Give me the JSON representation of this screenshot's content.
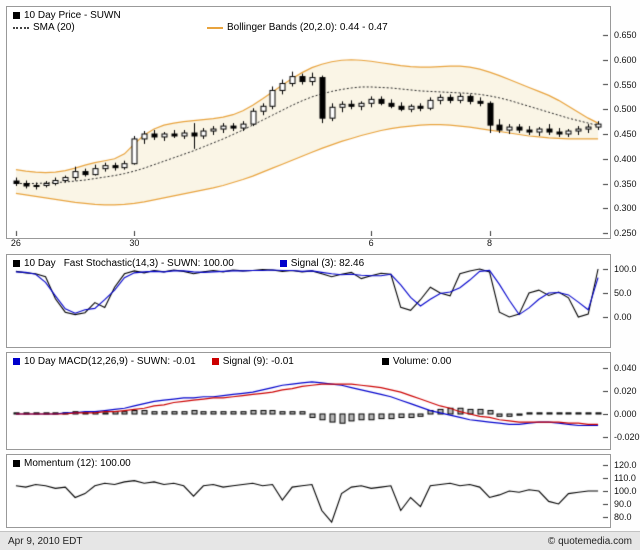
{
  "footer": {
    "date": "Apr 9, 2010 EDT",
    "credit": "© quotemedia.com"
  },
  "colors": {
    "bollinger": "#e8a33d",
    "band_fill": "rgba(244,232,200,0.45)",
    "sma": "#222222",
    "candle_outline": "#000000",
    "candle_up_fill": "#ffffff",
    "candle_down_fill": "#000000",
    "stoch_k": "#000000",
    "stoch_signal": "#0000cc",
    "macd_line": "#0000cc",
    "macd_signal": "#cc0000",
    "volume_bar_fill": "#b8b8b8",
    "volume_bar_outline": "#000000",
    "momentum_line": "#000000",
    "axis_tick": "#333333",
    "panel_border": "#999999",
    "footer_bg": "#e6e6e6"
  },
  "legends": {
    "price": {
      "title": {
        "color": "#000000",
        "label": "10 Day Price - SUWN"
      },
      "sma": {
        "color": "#000000",
        "label": "SMA (20)"
      },
      "bollinger": {
        "color": "#e8a33d",
        "label": "Bollinger Bands (20,2.0): 0.44 - 0.47"
      }
    },
    "stochastic": {
      "period": {
        "color": "#000000",
        "label": "10 Day"
      },
      "k": {
        "label": "Fast Stochastic(14,3) - SUWN: 100.00"
      },
      "signal": {
        "color": "#0000cc",
        "label": "Signal (3): 82.46"
      }
    },
    "macd": {
      "macd": {
        "color": "#0000cc",
        "label": "10 Day MACD(12,26,9) - SUWN: -0.01"
      },
      "signal": {
        "color": "#cc0000",
        "label": "Signal (9): -0.01"
      },
      "volume": {
        "color": "#000000",
        "label": "Volume: 0.00"
      }
    },
    "momentum": {
      "momentum": {
        "color": "#000000",
        "label": "Momentum (12): 100.00"
      }
    }
  },
  "chart_data": [
    {
      "type": "candlestick",
      "title": "10 Day Price - SUWN",
      "legend": [
        "10 Day Price - SUWN",
        "SMA (20)",
        "Bollinger Bands (20,2.0): 0.44 - 0.47"
      ],
      "ylim": [
        0.25,
        0.65
      ],
      "y_ticks": [
        "0.650",
        "0.600",
        "0.550",
        "0.500",
        "0.450",
        "0.400",
        "0.350",
        "0.300",
        "0.250"
      ],
      "x_tick_labels": [
        "26",
        "30",
        "6",
        "8"
      ],
      "x_tick_index": [
        0,
        12,
        36,
        48
      ],
      "candles_ohlc": [
        [
          0.355,
          0.362,
          0.345,
          0.35
        ],
        [
          0.35,
          0.356,
          0.34,
          0.345
        ],
        [
          0.345,
          0.352,
          0.338,
          0.346
        ],
        [
          0.346,
          0.355,
          0.342,
          0.35
        ],
        [
          0.35,
          0.362,
          0.346,
          0.356
        ],
        [
          0.356,
          0.366,
          0.352,
          0.362
        ],
        [
          0.362,
          0.384,
          0.356,
          0.374
        ],
        [
          0.374,
          0.38,
          0.364,
          0.368
        ],
        [
          0.368,
          0.388,
          0.366,
          0.38
        ],
        [
          0.38,
          0.392,
          0.374,
          0.386
        ],
        [
          0.386,
          0.392,
          0.376,
          0.382
        ],
        [
          0.382,
          0.396,
          0.378,
          0.39
        ],
        [
          0.39,
          0.446,
          0.388,
          0.44
        ],
        [
          0.44,
          0.456,
          0.43,
          0.45
        ],
        [
          0.45,
          0.458,
          0.438,
          0.444
        ],
        [
          0.444,
          0.454,
          0.436,
          0.45
        ],
        [
          0.45,
          0.458,
          0.442,
          0.446
        ],
        [
          0.446,
          0.458,
          0.44,
          0.452
        ],
        [
          0.452,
          0.472,
          0.42,
          0.446
        ],
        [
          0.446,
          0.462,
          0.44,
          0.456
        ],
        [
          0.456,
          0.466,
          0.448,
          0.46
        ],
        [
          0.46,
          0.472,
          0.452,
          0.466
        ],
        [
          0.466,
          0.472,
          0.456,
          0.462
        ],
        [
          0.462,
          0.476,
          0.456,
          0.47
        ],
        [
          0.47,
          0.502,
          0.466,
          0.496
        ],
        [
          0.496,
          0.512,
          0.488,
          0.506
        ],
        [
          0.506,
          0.546,
          0.5,
          0.538
        ],
        [
          0.538,
          0.56,
          0.53,
          0.552
        ],
        [
          0.552,
          0.576,
          0.546,
          0.566
        ],
        [
          0.566,
          0.572,
          0.55,
          0.556
        ],
        [
          0.556,
          0.574,
          0.548,
          0.564
        ],
        [
          0.564,
          0.568,
          0.472,
          0.482
        ],
        [
          0.482,
          0.512,
          0.476,
          0.504
        ],
        [
          0.504,
          0.516,
          0.494,
          0.51
        ],
        [
          0.51,
          0.518,
          0.5,
          0.506
        ],
        [
          0.506,
          0.516,
          0.498,
          0.512
        ],
        [
          0.512,
          0.526,
          0.504,
          0.52
        ],
        [
          0.52,
          0.526,
          0.508,
          0.512
        ],
        [
          0.512,
          0.52,
          0.502,
          0.506
        ],
        [
          0.506,
          0.514,
          0.496,
          0.5
        ],
        [
          0.5,
          0.51,
          0.494,
          0.506
        ],
        [
          0.506,
          0.512,
          0.496,
          0.502
        ],
        [
          0.502,
          0.524,
          0.498,
          0.518
        ],
        [
          0.518,
          0.53,
          0.51,
          0.524
        ],
        [
          0.524,
          0.53,
          0.512,
          0.518
        ],
        [
          0.518,
          0.532,
          0.512,
          0.526
        ],
        [
          0.526,
          0.53,
          0.51,
          0.516
        ],
        [
          0.516,
          0.524,
          0.506,
          0.512
        ],
        [
          0.512,
          0.516,
          0.452,
          0.468
        ],
        [
          0.468,
          0.48,
          0.452,
          0.458
        ],
        [
          0.458,
          0.47,
          0.45,
          0.464
        ],
        [
          0.464,
          0.47,
          0.452,
          0.458
        ],
        [
          0.458,
          0.466,
          0.448,
          0.454
        ],
        [
          0.454,
          0.464,
          0.446,
          0.46
        ],
        [
          0.46,
          0.47,
          0.448,
          0.454
        ],
        [
          0.454,
          0.462,
          0.444,
          0.45
        ],
        [
          0.45,
          0.46,
          0.444,
          0.456
        ],
        [
          0.456,
          0.466,
          0.448,
          0.46
        ],
        [
          0.46,
          0.47,
          0.452,
          0.464
        ],
        [
          0.464,
          0.476,
          0.458,
          0.47
        ]
      ],
      "sma20": [
        0.35,
        0.35,
        0.35,
        0.351,
        0.352,
        0.353,
        0.355,
        0.357,
        0.36,
        0.363,
        0.366,
        0.37,
        0.375,
        0.381,
        0.388,
        0.395,
        0.402,
        0.409,
        0.416,
        0.424,
        0.432,
        0.44,
        0.449,
        0.458,
        0.468,
        0.478,
        0.488,
        0.498,
        0.508,
        0.517,
        0.525,
        0.531,
        0.536,
        0.54,
        0.543,
        0.545,
        0.545,
        0.544,
        0.543,
        0.541,
        0.539,
        0.537,
        0.536,
        0.535,
        0.534,
        0.533,
        0.532,
        0.53,
        0.527,
        0.523,
        0.518,
        0.512,
        0.506,
        0.5,
        0.494,
        0.488,
        0.482,
        0.477,
        0.472,
        0.467
      ],
      "bb_upper": [
        0.378,
        0.375,
        0.373,
        0.372,
        0.373,
        0.376,
        0.381,
        0.387,
        0.392,
        0.396,
        0.4,
        0.41,
        0.43,
        0.448,
        0.46,
        0.468,
        0.472,
        0.475,
        0.477,
        0.479,
        0.481,
        0.484,
        0.489,
        0.497,
        0.508,
        0.521,
        0.535,
        0.549,
        0.562,
        0.574,
        0.584,
        0.591,
        0.596,
        0.599,
        0.6,
        0.599,
        0.597,
        0.594,
        0.591,
        0.588,
        0.586,
        0.585,
        0.585,
        0.586,
        0.587,
        0.587,
        0.585,
        0.581,
        0.575,
        0.568,
        0.56,
        0.552,
        0.544,
        0.536,
        0.528,
        0.518,
        0.506,
        0.494,
        0.482,
        0.472
      ],
      "bb_lower": [
        0.33,
        0.327,
        0.324,
        0.321,
        0.318,
        0.315,
        0.312,
        0.31,
        0.308,
        0.307,
        0.307,
        0.308,
        0.31,
        0.313,
        0.317,
        0.321,
        0.325,
        0.329,
        0.333,
        0.337,
        0.341,
        0.346,
        0.352,
        0.358,
        0.365,
        0.373,
        0.381,
        0.389,
        0.397,
        0.405,
        0.413,
        0.421,
        0.428,
        0.435,
        0.441,
        0.447,
        0.452,
        0.457,
        0.461,
        0.464,
        0.466,
        0.468,
        0.469,
        0.469,
        0.468,
        0.466,
        0.464,
        0.461,
        0.458,
        0.455,
        0.452,
        0.449,
        0.446,
        0.444,
        0.442,
        0.441,
        0.44,
        0.44,
        0.44,
        0.44
      ]
    },
    {
      "type": "line",
      "title": "10 Day Fast Stochastic(14,3) - SUWN",
      "ylim": [
        0,
        100
      ],
      "y_ticks": [
        "100.0",
        "50.0",
        "0.00"
      ],
      "series": [
        {
          "name": "Fast Stochastic(14,3) - SUWN",
          "current": 100.0,
          "color": "#000000",
          "values": [
            95,
            92,
            90,
            84,
            38,
            10,
            5,
            9,
            30,
            20,
            62,
            90,
            96,
            92,
            97,
            94,
            98,
            95,
            90,
            94,
            97,
            94,
            98,
            96,
            97,
            99,
            98,
            95,
            97,
            94,
            96,
            90,
            84,
            89,
            93,
            80,
            86,
            91,
            89,
            20,
            14,
            36,
            62,
            50,
            44,
            90,
            96,
            100,
            94,
            10,
            0,
            6,
            50,
            56,
            45,
            52,
            40,
            0,
            6,
            100
          ]
        },
        {
          "name": "Signal (3)",
          "current": 82.46,
          "color": "#0000cc",
          "values": [
            94,
            93,
            89,
            72,
            44,
            17,
            8,
            15,
            18,
            36,
            56,
            82,
            92,
            94,
            95,
            94,
            96,
            96,
            94,
            93,
            94,
            95,
            96,
            96,
            97,
            97,
            98,
            97,
            97,
            95,
            96,
            93,
            90,
            88,
            89,
            87,
            86,
            86,
            89,
            67,
            41,
            23,
            37,
            49,
            52,
            61,
            77,
            95,
            97,
            68,
            35,
            5,
            19,
            37,
            50,
            51,
            46,
            31,
            15,
            82
          ]
        }
      ]
    },
    {
      "type": "line+bar",
      "title": "10 Day MACD(12,26,9) - SUWN",
      "ylim": [
        -0.02,
        0.04
      ],
      "y_ticks": [
        "0.040",
        "0.020",
        "0.000",
        "-0.020"
      ],
      "series": [
        {
          "name": "MACD(12,26,9) - SUWN",
          "current": -0.01,
          "color": "#0000cc",
          "values": [
            0.0,
            0.0,
            0.0,
            0.0,
            0.0,
            0.001,
            0.001,
            0.002,
            0.002,
            0.003,
            0.004,
            0.005,
            0.007,
            0.009,
            0.011,
            0.012,
            0.013,
            0.014,
            0.014,
            0.015,
            0.015,
            0.016,
            0.017,
            0.018,
            0.019,
            0.021,
            0.023,
            0.025,
            0.026,
            0.027,
            0.028,
            0.027,
            0.026,
            0.025,
            0.023,
            0.021,
            0.019,
            0.017,
            0.015,
            0.012,
            0.009,
            0.006,
            0.003,
            0.001,
            -0.001,
            -0.003,
            -0.005,
            -0.006,
            -0.007,
            -0.008,
            -0.009,
            -0.009,
            -0.008,
            -0.007,
            -0.007,
            -0.008,
            -0.009,
            -0.01,
            -0.01,
            -0.01
          ]
        },
        {
          "name": "Signal (9)",
          "current": -0.01,
          "color": "#cc0000",
          "values": [
            0.0,
            0.0,
            0.0,
            0.0,
            0.0,
            0.0,
            0.001,
            0.001,
            0.001,
            0.002,
            0.002,
            0.003,
            0.004,
            0.005,
            0.007,
            0.008,
            0.01,
            0.011,
            0.012,
            0.013,
            0.014,
            0.014,
            0.015,
            0.016,
            0.017,
            0.018,
            0.019,
            0.021,
            0.022,
            0.024,
            0.025,
            0.026,
            0.026,
            0.026,
            0.026,
            0.025,
            0.024,
            0.023,
            0.021,
            0.019,
            0.016,
            0.013,
            0.01,
            0.007,
            0.005,
            0.002,
            0.0,
            -0.002,
            -0.003,
            -0.005,
            -0.006,
            -0.007,
            -0.007,
            -0.007,
            -0.007,
            -0.007,
            -0.008,
            -0.008,
            -0.009,
            -0.009
          ]
        }
      ],
      "bars": {
        "name": "Volume",
        "current": 0.0,
        "values": [
          0.001,
          0.001,
          0.001,
          0.001,
          0.001,
          0.001,
          0.002,
          0.001,
          0.002,
          0.001,
          0.002,
          0.002,
          0.003,
          0.003,
          0.002,
          0.002,
          0.002,
          0.002,
          0.003,
          0.002,
          0.002,
          0.002,
          0.002,
          0.002,
          0.003,
          0.003,
          0.003,
          0.002,
          0.002,
          0.002,
          -0.003,
          -0.005,
          -0.007,
          -0.008,
          -0.006,
          -0.005,
          -0.005,
          -0.004,
          -0.004,
          -0.003,
          -0.003,
          -0.002,
          0.003,
          0.004,
          0.005,
          0.005,
          0.004,
          0.004,
          0.003,
          -0.002,
          -0.002,
          -0.001,
          0.001,
          0.001,
          0.001,
          0.001,
          0.001,
          0.001,
          0.001,
          0.001
        ]
      }
    },
    {
      "type": "line",
      "title": "Momentum (12)",
      "ylim": [
        80,
        120
      ],
      "y_ticks": [
        "120.0",
        "110.0",
        "100.0",
        "90.0",
        "80.0"
      ],
      "series": [
        {
          "name": "Momentum (12)",
          "current": 100.0,
          "color": "#000000",
          "values": [
            104,
            103,
            105,
            104,
            102,
            103,
            95,
            98,
            104,
            106,
            105,
            107,
            108,
            106,
            107,
            105,
            106,
            104,
            96,
            104,
            105,
            103,
            104,
            105,
            106,
            104,
            105,
            93,
            103,
            104,
            105,
            85,
            76,
            98,
            103,
            104,
            102,
            103,
            104,
            85,
            95,
            88,
            104,
            105,
            106,
            104,
            105,
            103,
            95,
            97,
            100,
            99,
            101,
            100,
            92,
            90,
            98,
            99,
            100,
            100
          ]
        }
      ]
    }
  ]
}
